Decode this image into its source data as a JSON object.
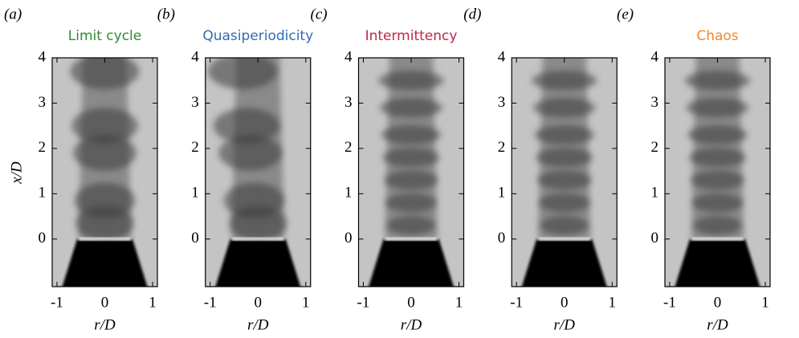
{
  "panels": [
    {
      "label": "(a)",
      "title": "Limit cycle",
      "title_color": "#2e8b2e",
      "ylabel": "x/D",
      "xlabel": "r/D",
      "xlim": [
        -1.1,
        1.1
      ],
      "ylim": [
        -1.05,
        4
      ],
      "xticks": [
        -1,
        0,
        1
      ],
      "yticks": [
        0,
        1,
        2,
        3,
        4
      ]
    },
    {
      "label": "(b)",
      "title": "Quasiperiodicity",
      "title_color": "#2f6db0",
      "xlabel": "r/D",
      "xlim": [
        -1.1,
        1.1
      ],
      "ylim": [
        -1.05,
        4
      ],
      "xticks": [
        -1,
        0,
        1
      ],
      "yticks": [
        0,
        1,
        2,
        3,
        4
      ]
    },
    {
      "label": "(c)",
      "title": "Intermittency",
      "title_color": "#c0254a",
      "xlabel": "r/D",
      "xlim": [
        -1.1,
        1.1
      ],
      "ylim": [
        -1.05,
        4
      ],
      "xticks": [
        -1,
        0,
        1
      ],
      "yticks": [
        0,
        1,
        2,
        3,
        4
      ]
    },
    {
      "label": "(d)",
      "xlabel": "r/D",
      "xlim": [
        -1.1,
        1.1
      ],
      "ylim": [
        -1.05,
        4
      ],
      "xticks": [
        -1,
        0,
        1
      ],
      "yticks": [
        0,
        1,
        2,
        3,
        4
      ]
    },
    {
      "label": "(e)",
      "title": "Chaos",
      "title_color": "#f0882a",
      "xlabel": "r/D",
      "xlim": [
        -1.1,
        1.1
      ],
      "ylim": [
        -1.05,
        4
      ],
      "xticks": [
        -1,
        0,
        1
      ],
      "yticks": [
        0,
        1,
        2,
        3,
        4
      ]
    }
  ]
}
